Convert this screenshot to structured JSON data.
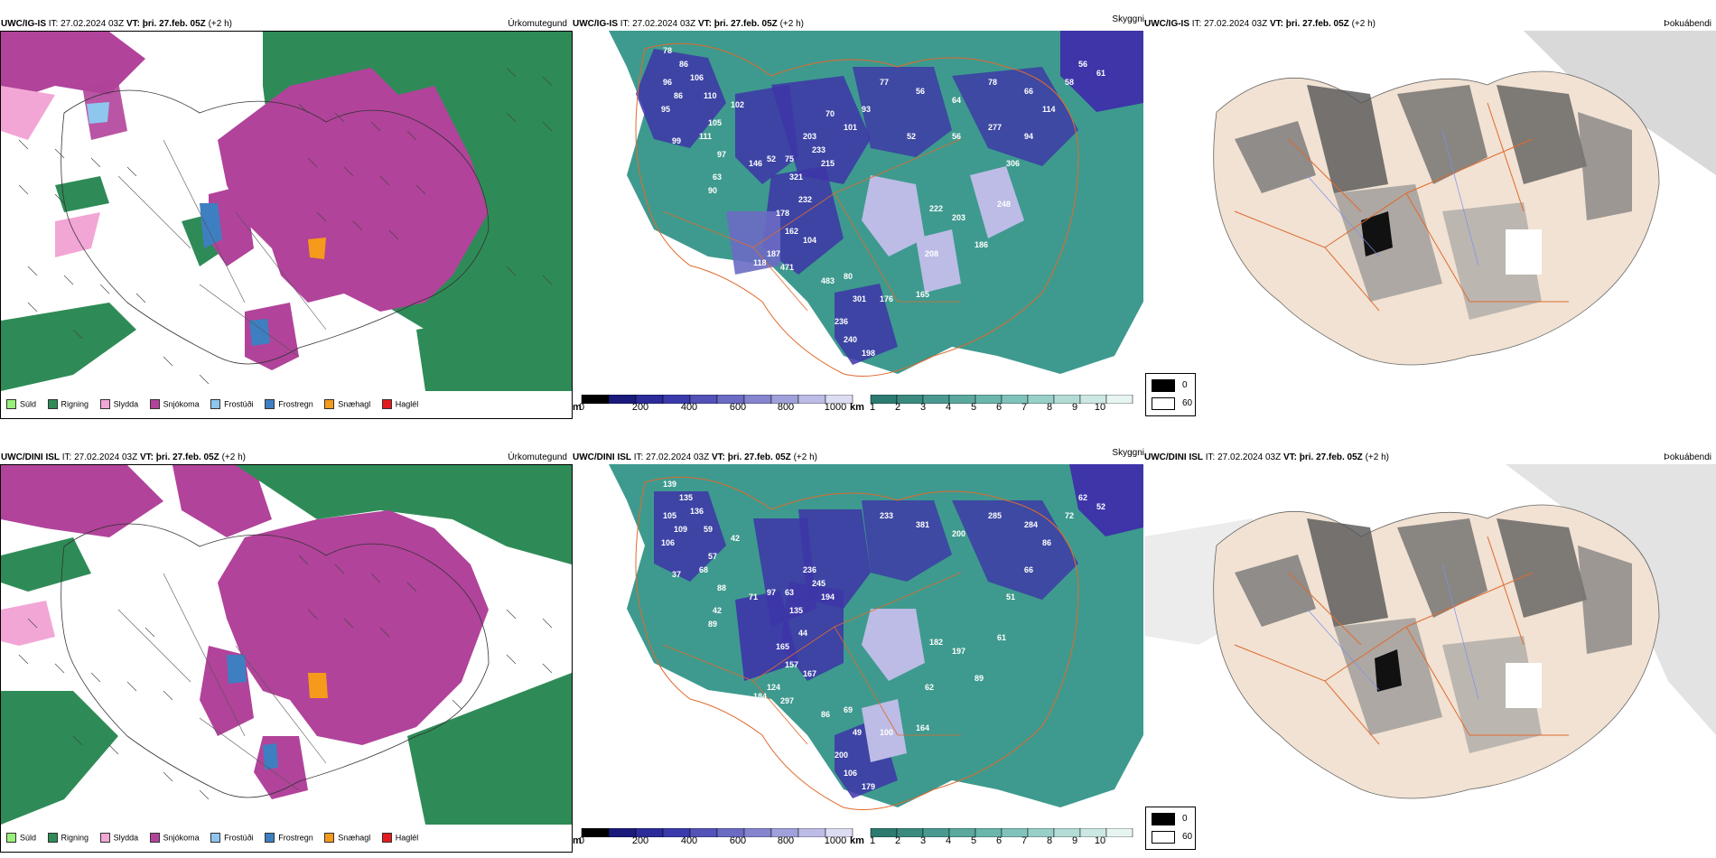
{
  "rows": [
    {
      "id": "ig",
      "panels": [
        {
          "model": "UWC/IG-IS",
          "it_label": "IT:",
          "it": "27.02.2024 03Z",
          "vt_label": "VT:",
          "vt": "þri. 27.feb. 05Z",
          "lead": "(+2 h)",
          "title": "Úrkomutegund"
        },
        {
          "model": "UWC/IG-IS",
          "it_label": "IT:",
          "it": "27.02.2024 03Z",
          "vt_label": "VT:",
          "vt": "þri. 27.feb. 05Z",
          "lead": "(+2 h)",
          "title": "Skyggni"
        },
        {
          "model": "UWC/IG-IS",
          "it_label": "IT:",
          "it": "27.02.2024 03Z",
          "vt_label": "VT:",
          "vt": "þri. 27.feb. 05Z",
          "lead": "(+2 h)",
          "title": "Þokuábendi"
        }
      ],
      "numbers": [
        "78",
        "86",
        "106",
        "96",
        "86",
        "95",
        "110",
        "105",
        "111",
        "99",
        "97",
        "102",
        "63",
        "90",
        "146",
        "52",
        "75",
        "321",
        "203",
        "233",
        "215",
        "232",
        "178",
        "162",
        "104",
        "187",
        "118",
        "471",
        "483",
        "80",
        "301",
        "236",
        "240",
        "198",
        "176",
        "165",
        "208",
        "222",
        "203",
        "186",
        "248",
        "306",
        "94",
        "114",
        "58",
        "56",
        "61",
        "66",
        "78",
        "64",
        "56",
        "77",
        "93",
        "101",
        "70",
        "52",
        "56",
        "277"
      ]
    },
    {
      "id": "dini",
      "panels": [
        {
          "model": "UWC/DINI ISL",
          "it_label": "IT:",
          "it": "27.02.2024 03Z",
          "vt_label": "VT:",
          "vt": "þri. 27.feb. 05Z",
          "lead": "(+2 h)",
          "title": "Úrkomutegund"
        },
        {
          "model": "UWC/DINI ISL",
          "it_label": "IT:",
          "it": "27.02.2024 03Z",
          "vt_label": "VT:",
          "vt": "þri. 27.feb. 05Z",
          "lead": "(+2 h)",
          "title": "Skyggni"
        },
        {
          "model": "UWC/DINI ISL",
          "it_label": "IT:",
          "it": "27.02.2024 03Z",
          "vt_label": "VT:",
          "vt": "þri. 27.feb. 05Z",
          "lead": "(+2 h)",
          "title": "Þokuábendi"
        }
      ],
      "numbers": [
        "139",
        "135",
        "136",
        "105",
        "109",
        "106",
        "59",
        "57",
        "68",
        "37",
        "88",
        "42",
        "42",
        "89",
        "71",
        "97",
        "63",
        "135",
        "236",
        "245",
        "194",
        "44",
        "165",
        "157",
        "167",
        "124",
        "184",
        "297",
        "86",
        "69",
        "49",
        "200",
        "106",
        "179",
        "100",
        "164",
        "62",
        "182",
        "197",
        "89",
        "61",
        "51",
        "66",
        "86",
        "72",
        "62",
        "52",
        "284",
        "285",
        "200",
        "381",
        "233"
      ]
    }
  ],
  "precip_legend": [
    {
      "label": "Súld",
      "color": "#98f07a"
    },
    {
      "label": "Rigning",
      "color": "#2e8b57"
    },
    {
      "label": "Slydda",
      "color": "#f2a6d6"
    },
    {
      "label": "Snjókoma",
      "color": "#b1439a"
    },
    {
      "label": "Frostúði",
      "color": "#8ec6ee"
    },
    {
      "label": "Frostregn",
      "color": "#3e7fc1"
    },
    {
      "label": "Snæhagl",
      "color": "#f59a1b"
    },
    {
      "label": "Haglél",
      "color": "#e41a1c"
    }
  ],
  "visibility_bar": {
    "m_unit": "m",
    "m_ticks": [
      "0",
      "200",
      "400",
      "600",
      "800",
      "1000"
    ],
    "m_colors": [
      "#000000",
      "#1a1a7a",
      "#2b2b9a",
      "#3a3aad",
      "#5252b8",
      "#6b6bc4",
      "#8484cf",
      "#a0a0da",
      "#bcbce6",
      "#dcdcf2"
    ],
    "km_unit": "km",
    "km_ticks": [
      "1",
      "2",
      "3",
      "4",
      "5",
      "6",
      "7",
      "8",
      "9",
      "10"
    ],
    "km_colors": [
      "#2c7a70",
      "#3b8a80",
      "#4a9990",
      "#5aa89e",
      "#6ab6ac",
      "#80c3ba",
      "#98cfc7",
      "#b2dcd5",
      "#cce8e3",
      "#e8f4f2"
    ]
  },
  "fog_legend": [
    {
      "label": "0",
      "color": "#000000"
    },
    {
      "label": "60",
      "color": "#ffffff"
    }
  ],
  "colors": {
    "rain": "#2e8b57",
    "snow": "#b1439a",
    "sleet": "#f2a6d6",
    "freezing_rain": "#3e7fc1",
    "graupel": "#f59a1b",
    "vis_teal": "#3e9a8e",
    "vis_blue": "#3d35a8",
    "land": "#f1e2d3",
    "road": "#e06a2e"
  }
}
